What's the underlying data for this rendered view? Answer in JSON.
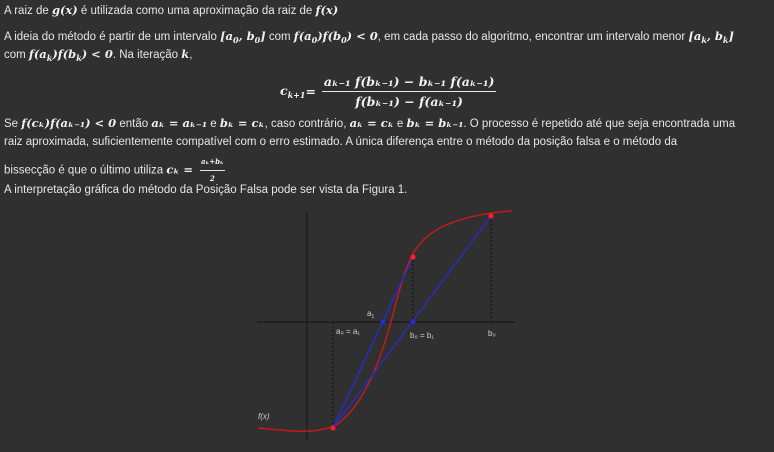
{
  "para1": {
    "t1": "A raiz de ",
    "m1": "g(x)",
    "t2": " é utilizada como uma aproximação da raiz de ",
    "m2": "f(x)"
  },
  "para2": {
    "t1": "A ideia do método é partir de um intervalo ",
    "m1": "[a",
    "m1s": "0",
    "m1b": ", b",
    "m1bs": "0",
    "m1c": "]",
    "t2": " com ",
    "m2": "f(a",
    "m2s": "0",
    "m2b": ")f(b",
    "m2bs": "0",
    "m2c": ") < 0",
    "t3": ", em cada passo do algoritmo, encontrar um intervalo menor ",
    "m3": "[a",
    "m3s": "k",
    "m3b": ", b",
    "m3bs": "k",
    "m3c": "]"
  },
  "para2b": {
    "t1": "com ",
    "m1": "f(a",
    "m1s": "k",
    "m1b": ")f(b",
    "m1bs": "k",
    "m1c": ") < 0",
    "t2": ". Na iteração ",
    "m2": "k",
    "t3": ","
  },
  "formula": {
    "lhs": "c",
    "lhs_sub": "k+1",
    "eq": " = ",
    "num": "aₖ₋₁ f(bₖ₋₁) − bₖ₋₁ f(aₖ₋₁)",
    "den": "f(bₖ₋₁) − f(aₖ₋₁)"
  },
  "para3": {
    "t1": "Se ",
    "m1": "f(cₖ)f(aₖ₋₁) < 0",
    "t2": " então ",
    "m2": "aₖ = aₖ₋₁",
    "t3": " e ",
    "m3": "bₖ = cₖ",
    "t4": ", caso contrário, ",
    "m4": "aₖ = cₖ",
    "t5": " e ",
    "m5": "bₖ = bₖ₋₁",
    "t6": ". O processo é repetido até que seja encontrada uma"
  },
  "para3b": "raiz aproximada, suficientemente compatível com o erro estimado. A única diferença entre o método da posição falsa e o método da",
  "para3c": {
    "t1": "bissecção é que o último utiliza ",
    "m1": "cₖ = ",
    "fnum": "aₖ+bₖ",
    "fden": "2"
  },
  "para4": "A interpretação gráfica do método da Posição Falsa pode ser vista da Figura 1.",
  "figure": {
    "label_fx": "f(x)",
    "label_a1": "a",
    "label_a1_sub": "1",
    "label_a0": "a₀ = a₁",
    "label_b0": "b₀ = b₁",
    "label_b": "b₀",
    "curve_color": "#d01818",
    "secant_color": "#2a2ad6",
    "axis_color": "#1a1a1a",
    "point_color": "#ff2020"
  }
}
